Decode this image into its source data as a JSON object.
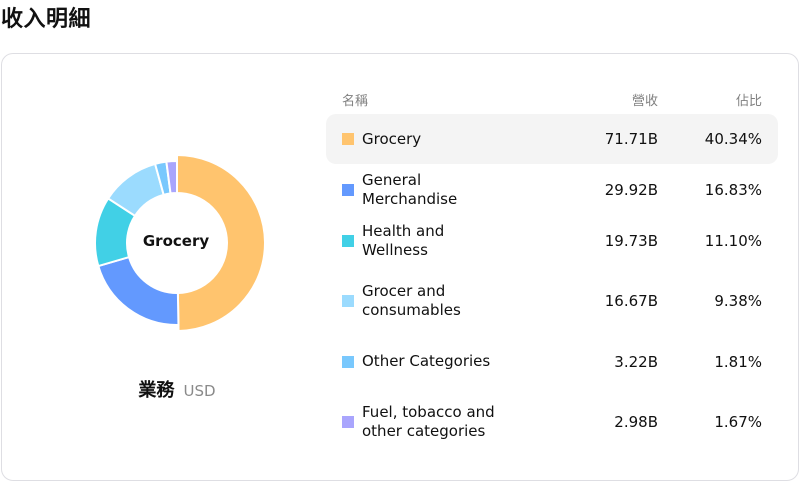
{
  "page": {
    "title": "收入明細"
  },
  "chart": {
    "center_label": "Grocery",
    "caption": "業務",
    "unit": "USD"
  },
  "table": {
    "headers": {
      "name": "名稱",
      "revenue": "營收",
      "share": "佔比"
    },
    "rows": [
      {
        "name": "Grocery",
        "revenue": "71.71B",
        "share": "40.34%",
        "color": "#ffc46e",
        "active": true
      },
      {
        "name": "General Merchandise",
        "revenue": "29.92B",
        "share": "16.83%",
        "color": "#6399fe",
        "active": false
      },
      {
        "name": "Health and Wellness",
        "revenue": "19.73B",
        "share": "11.10%",
        "color": "#41d0e6",
        "active": false
      },
      {
        "name": "Grocer and consumables",
        "revenue": "16.67B",
        "share": "9.38%",
        "color": "#9bdbfe",
        "active": false
      },
      {
        "name": "Other Categories",
        "revenue": "3.22B",
        "share": "1.81%",
        "color": "#79c8fd",
        "active": false
      },
      {
        "name": "Fuel, tobacco and other categories",
        "revenue": "2.98B",
        "share": "1.67%",
        "color": "#a9a5fd",
        "active": false
      }
    ]
  },
  "chart_data": {
    "type": "pie",
    "title": "收入明細",
    "subtitle": "業務 USD",
    "center_label": "Grocery",
    "categories": [
      "Grocery",
      "General Merchandise",
      "Health and Wellness",
      "Grocer and consumables",
      "Other Categories",
      "Fuel, tobacco and other categories"
    ],
    "values": [
      71.71,
      29.92,
      19.73,
      16.67,
      3.22,
      2.98
    ],
    "shares_pct": [
      40.34,
      16.83,
      11.1,
      9.38,
      1.81,
      1.67
    ],
    "unit": "B USD",
    "colors": [
      "#ffc46e",
      "#6399fe",
      "#41d0e6",
      "#9bdbfe",
      "#79c8fd",
      "#a9a5fd"
    ],
    "donut": true,
    "highlighted": "Grocery",
    "legend_position": "right (table)"
  }
}
